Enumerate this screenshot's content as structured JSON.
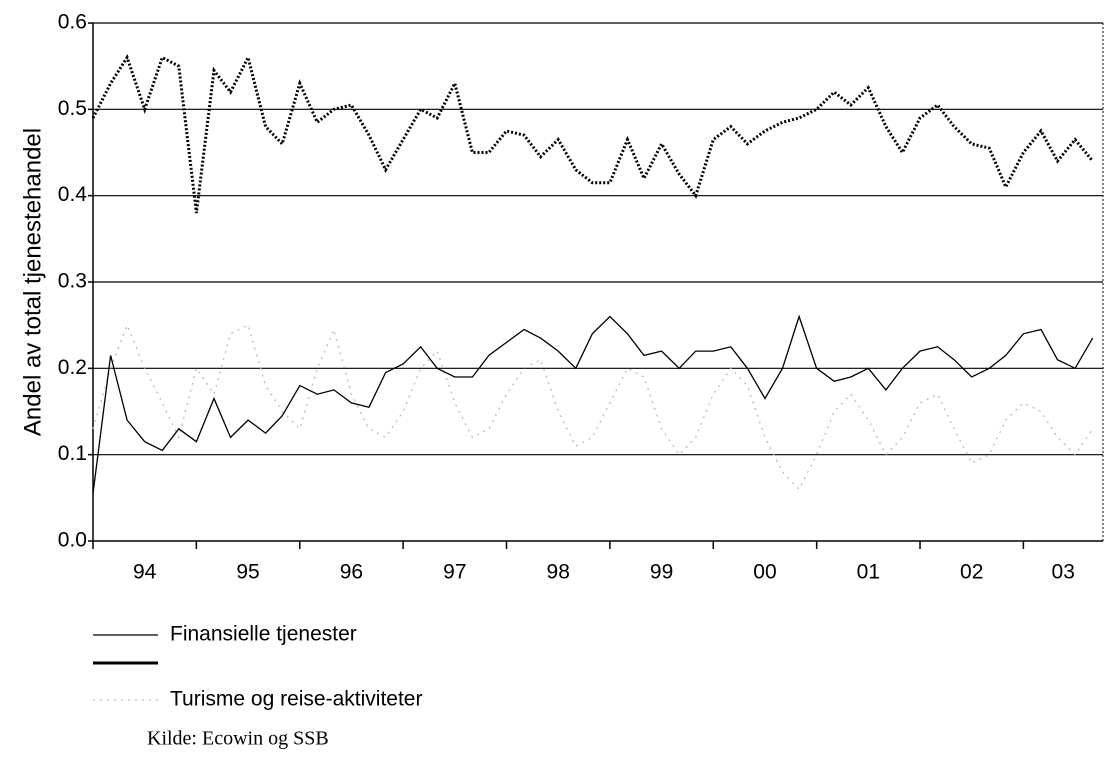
{
  "chart_data": {
    "type": "line",
    "y_label": "Andel av total tjenestehandel",
    "source": "Kilde: Ecowin og SSB",
    "categories": [
      "94",
      "95",
      "96",
      "97",
      "98",
      "99",
      "00",
      "01",
      "02",
      "03"
    ],
    "x": [
      1994.0,
      1994.17,
      1994.33,
      1994.5,
      1994.67,
      1994.83,
      1995.0,
      1995.17,
      1995.33,
      1995.5,
      1995.67,
      1995.83,
      1996.0,
      1996.17,
      1996.33,
      1996.5,
      1996.67,
      1996.83,
      1997.0,
      1997.17,
      1997.33,
      1997.5,
      1997.67,
      1997.83,
      1998.0,
      1998.17,
      1998.33,
      1998.5,
      1998.67,
      1998.83,
      1999.0,
      1999.17,
      1999.33,
      1999.5,
      1999.67,
      1999.83,
      2000.0,
      2000.17,
      2000.33,
      2000.5,
      2000.67,
      2000.83,
      2001.0,
      2001.17,
      2001.33,
      2001.5,
      2001.67,
      2001.83,
      2002.0,
      2002.17,
      2002.33,
      2002.5,
      2002.67,
      2002.83,
      2003.0,
      2003.17,
      2003.33,
      2003.5,
      2003.67
    ],
    "series": [
      {
        "name": "Finansielle tjenester",
        "color": "#000000",
        "width": 1.3,
        "dash": "none",
        "values": [
          0.055,
          0.215,
          0.14,
          0.115,
          0.105,
          0.13,
          0.115,
          0.165,
          0.12,
          0.14,
          0.125,
          0.145,
          0.18,
          0.17,
          0.175,
          0.16,
          0.155,
          0.195,
          0.205,
          0.225,
          0.2,
          0.19,
          0.19,
          0.215,
          0.23,
          0.245,
          0.235,
          0.22,
          0.2,
          0.24,
          0.26,
          0.24,
          0.215,
          0.22,
          0.2,
          0.22,
          0.22,
          0.225,
          0.2,
          0.165,
          0.2,
          0.26,
          0.2,
          0.185,
          0.19,
          0.2,
          0.175,
          0.2,
          0.22,
          0.225,
          0.21,
          0.19,
          0.2,
          0.215,
          0.24,
          0.245,
          0.21,
          0.2,
          0.235
        ]
      },
      {
        "color": "#000000",
        "width": 3,
        "dash": "2 2",
        "values": [
          0.49,
          0.53,
          0.56,
          0.5,
          0.56,
          0.55,
          0.38,
          0.545,
          0.52,
          0.56,
          0.48,
          0.46,
          0.53,
          0.485,
          0.5,
          0.505,
          0.47,
          0.43,
          0.465,
          0.5,
          0.49,
          0.53,
          0.45,
          0.45,
          0.475,
          0.47,
          0.445,
          0.465,
          0.43,
          0.415,
          0.415,
          0.465,
          0.42,
          0.46,
          0.425,
          0.4,
          0.465,
          0.48,
          0.46,
          0.475,
          0.485,
          0.49,
          0.5,
          0.52,
          0.505,
          0.525,
          0.48,
          0.45,
          0.49,
          0.505,
          0.48,
          0.46,
          0.455,
          0.41,
          0.45,
          0.475,
          0.44,
          0.465,
          0.44
        ]
      },
      {
        "name": "Turisme og reise-aktiviteter",
        "color": "#bbbbbb",
        "width": 1.3,
        "dash": "2 5",
        "values": [
          0.13,
          0.2,
          0.25,
          0.2,
          0.16,
          0.12,
          0.2,
          0.17,
          0.24,
          0.25,
          0.18,
          0.15,
          0.13,
          0.2,
          0.245,
          0.17,
          0.13,
          0.12,
          0.15,
          0.2,
          0.22,
          0.16,
          0.12,
          0.13,
          0.17,
          0.2,
          0.21,
          0.15,
          0.11,
          0.12,
          0.16,
          0.2,
          0.19,
          0.13,
          0.1,
          0.12,
          0.17,
          0.2,
          0.18,
          0.12,
          0.08,
          0.06,
          0.1,
          0.15,
          0.17,
          0.14,
          0.1,
          0.12,
          0.16,
          0.17,
          0.13,
          0.09,
          0.1,
          0.14,
          0.16,
          0.15,
          0.12,
          0.1,
          0.13
        ]
      }
    ],
    "xlim": [
      1994,
      2003.77
    ],
    "xticks": [
      1994,
      1995,
      1996,
      1997,
      1998,
      1999,
      2000,
      2001,
      2002,
      2003
    ],
    "ylim": [
      0,
      0.6
    ],
    "yticks": [
      {
        "value": 0,
        "label": "0.0"
      },
      0.1,
      0.2,
      0.3,
      0.4,
      0.5,
      0.6
    ],
    "grid": true
  }
}
